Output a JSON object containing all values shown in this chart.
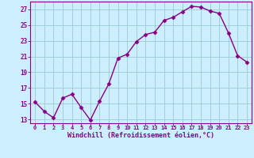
{
  "x": [
    0,
    1,
    2,
    3,
    4,
    5,
    6,
    7,
    8,
    9,
    10,
    11,
    12,
    13,
    14,
    15,
    16,
    17,
    18,
    19,
    20,
    21,
    22,
    23
  ],
  "y": [
    15.2,
    14.0,
    13.2,
    15.7,
    16.2,
    14.5,
    12.9,
    15.3,
    17.5,
    20.8,
    21.3,
    22.9,
    23.8,
    24.1,
    25.6,
    26.0,
    26.7,
    27.4,
    27.3,
    26.8,
    26.5,
    24.0,
    21.1,
    20.3
  ],
  "line_color": "#880088",
  "marker": "D",
  "markersize": 2.5,
  "linewidth": 1.0,
  "bg_color": "#cceeff",
  "grid_color": "#99cccc",
  "xlabel": "Windchill (Refroidissement éolien,°C)",
  "xlabel_color": "#880088",
  "tick_color": "#880088",
  "ylim": [
    12.5,
    28.0
  ],
  "xlim": [
    -0.5,
    23.5
  ],
  "yticks": [
    13,
    15,
    17,
    19,
    21,
    23,
    25,
    27
  ],
  "xticks": [
    0,
    1,
    2,
    3,
    4,
    5,
    6,
    7,
    8,
    9,
    10,
    11,
    12,
    13,
    14,
    15,
    16,
    17,
    18,
    19,
    20,
    21,
    22,
    23
  ],
  "xtick_labels": [
    "0",
    "1",
    "2",
    "3",
    "4",
    "5",
    "6",
    "7",
    "8",
    "9",
    "10",
    "11",
    "12",
    "13",
    "14",
    "15",
    "16",
    "17",
    "18",
    "19",
    "20",
    "21",
    "22",
    "23"
  ]
}
